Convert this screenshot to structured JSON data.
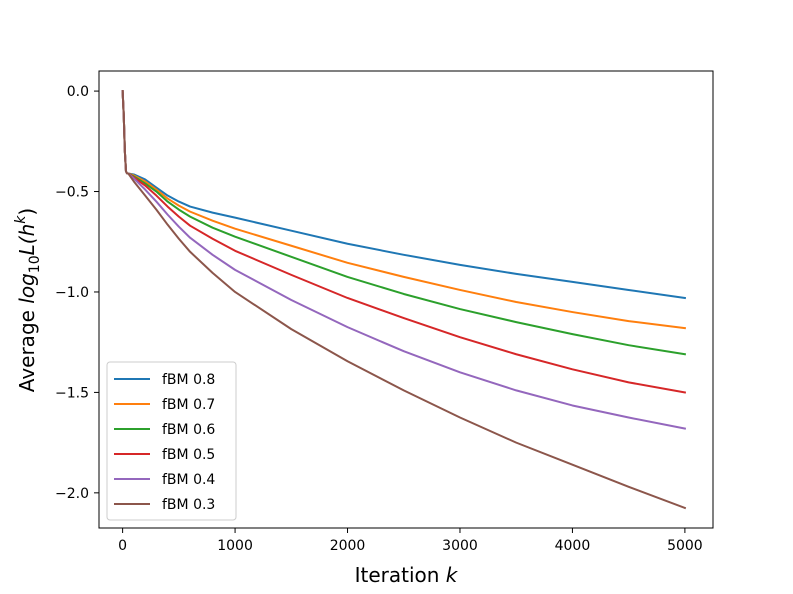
{
  "chart_data": {
    "type": "line",
    "title": "",
    "xlabel": "Iteration ",
    "xlabel_var": "k",
    "ylabel": "Average ",
    "ylabel_math": "log",
    "ylabel_sub": "10",
    "ylabel_tail": "L(h",
    "ylabel_sup": "k",
    "ylabel_close": ")",
    "xlim": [
      -210,
      5250
    ],
    "ylim": [
      -2.175,
      0.1
    ],
    "xticks": [
      0,
      1000,
      2000,
      3000,
      4000,
      5000
    ],
    "xtick_labels": [
      "0",
      "1000",
      "2000",
      "3000",
      "4000",
      "5000"
    ],
    "yticks": [
      0.0,
      -0.5,
      -1.0,
      -1.5,
      -2.0
    ],
    "ytick_labels": [
      "0.0",
      "-0.5",
      "-1.0",
      "-1.5",
      "-2.0"
    ],
    "grid": false,
    "legend_position": "lower-left",
    "x": [
      0,
      10,
      20,
      30,
      40,
      50,
      100,
      200,
      300,
      400,
      500,
      600,
      800,
      1000,
      1500,
      2000,
      2500,
      3000,
      3500,
      4000,
      4500,
      5000
    ],
    "series": [
      {
        "name": "fBM 0.8",
        "color": "#1f77b4",
        "values": [
          0.0,
          -0.12,
          -0.3,
          -0.4,
          -0.41,
          -0.41,
          -0.415,
          -0.44,
          -0.48,
          -0.52,
          -0.55,
          -0.575,
          -0.605,
          -0.63,
          -0.695,
          -0.76,
          -0.815,
          -0.865,
          -0.91,
          -0.95,
          -0.99,
          -1.03
        ]
      },
      {
        "name": "fBM 0.7",
        "color": "#ff7f0e",
        "values": [
          0.0,
          -0.12,
          -0.3,
          -0.4,
          -0.41,
          -0.41,
          -0.42,
          -0.45,
          -0.49,
          -0.535,
          -0.57,
          -0.6,
          -0.645,
          -0.685,
          -0.77,
          -0.855,
          -0.925,
          -0.99,
          -1.05,
          -1.1,
          -1.145,
          -1.18
        ]
      },
      {
        "name": "fBM 0.6",
        "color": "#2ca02c",
        "values": [
          0.0,
          -0.12,
          -0.3,
          -0.4,
          -0.41,
          -0.41,
          -0.425,
          -0.46,
          -0.5,
          -0.55,
          -0.59,
          -0.625,
          -0.68,
          -0.725,
          -0.825,
          -0.925,
          -1.01,
          -1.085,
          -1.15,
          -1.21,
          -1.265,
          -1.31
        ]
      },
      {
        "name": "fBM 0.5",
        "color": "#d62728",
        "values": [
          0.0,
          -0.12,
          -0.3,
          -0.4,
          -0.41,
          -0.41,
          -0.43,
          -0.47,
          -0.52,
          -0.575,
          -0.625,
          -0.67,
          -0.735,
          -0.795,
          -0.915,
          -1.03,
          -1.13,
          -1.225,
          -1.31,
          -1.385,
          -1.45,
          -1.5
        ]
      },
      {
        "name": "fBM 0.4",
        "color": "#9467bd",
        "values": [
          0.0,
          -0.12,
          -0.3,
          -0.4,
          -0.41,
          -0.41,
          -0.435,
          -0.49,
          -0.55,
          -0.615,
          -0.675,
          -0.73,
          -0.815,
          -0.89,
          -1.04,
          -1.175,
          -1.295,
          -1.4,
          -1.49,
          -1.565,
          -1.625,
          -1.68
        ]
      },
      {
        "name": "fBM 0.3",
        "color": "#8c564b",
        "values": [
          0.0,
          -0.12,
          -0.3,
          -0.4,
          -0.41,
          -0.41,
          -0.45,
          -0.52,
          -0.59,
          -0.665,
          -0.735,
          -0.8,
          -0.905,
          -1.0,
          -1.185,
          -1.345,
          -1.49,
          -1.625,
          -1.75,
          -1.86,
          -1.97,
          -2.075
        ]
      }
    ]
  }
}
